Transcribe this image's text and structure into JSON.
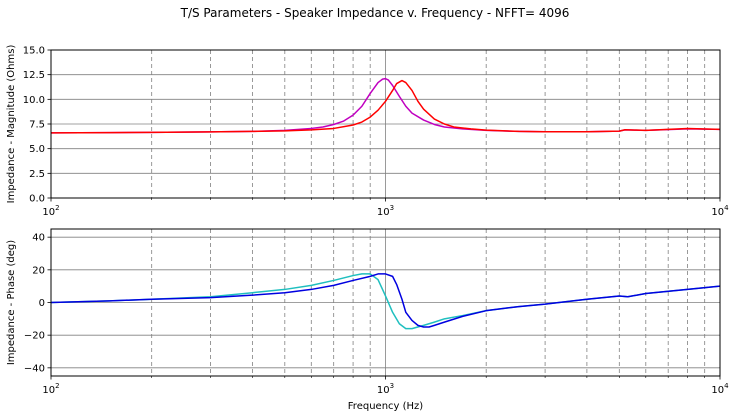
{
  "title": "T/S Parameters - Speaker Impedance v. Frequency - NFFT= 4096",
  "colors": {
    "frame": "#000000",
    "grid": "#808080",
    "mag_series_1": "#c000c0",
    "mag_series_2": "#ff0000",
    "phase_series_1": "#1fbfbf",
    "phase_series_2": "#0000e0"
  },
  "chart_data": [
    {
      "type": "line",
      "ylabel": "Impedance - Magnitude (Ohms)",
      "xlabel": "",
      "xscale": "log",
      "xlim": [
        100,
        10000
      ],
      "ylim": [
        0,
        15
      ],
      "yticks": [
        0.0,
        2.5,
        5.0,
        7.5,
        10.0,
        12.5,
        15.0
      ],
      "ytick_labels": [
        "0.0",
        "2.5",
        "5.0",
        "7.5",
        "10.0",
        "12.5",
        "15.0"
      ],
      "xtick_labels": [
        {
          "base": "10",
          "exp": "2",
          "value": 100
        },
        {
          "base": "10",
          "exp": "3",
          "value": 1000
        },
        {
          "base": "10",
          "exp": "4",
          "value": 10000
        }
      ],
      "grid": true,
      "series": [
        {
          "color_key": "mag_series_1",
          "x": [
            100,
            150,
            200,
            300,
            400,
            500,
            600,
            650,
            700,
            750,
            800,
            850,
            900,
            950,
            980,
            1000,
            1020,
            1050,
            1100,
            1150,
            1200,
            1300,
            1400,
            1500,
            1700,
            2000,
            2500,
            3000,
            4000,
            5000,
            5200,
            6000,
            8000,
            10000
          ],
          "values": [
            6.6,
            6.62,
            6.65,
            6.7,
            6.75,
            6.85,
            7.05,
            7.2,
            7.45,
            7.8,
            8.4,
            9.3,
            10.6,
            11.7,
            12.05,
            12.1,
            11.95,
            11.4,
            10.3,
            9.3,
            8.6,
            7.9,
            7.45,
            7.2,
            7.0,
            6.85,
            6.75,
            6.72,
            6.72,
            6.78,
            6.9,
            6.85,
            7.0,
            6.95
          ]
        },
        {
          "color_key": "mag_series_2",
          "x": [
            100,
            150,
            200,
            300,
            400,
            500,
            600,
            700,
            800,
            850,
            900,
            950,
            1000,
            1050,
            1080,
            1120,
            1150,
            1200,
            1250,
            1300,
            1400,
            1500,
            1600,
            1800,
            2000,
            2500,
            3000,
            4000,
            5000,
            5200,
            6000,
            8000,
            10000
          ],
          "values": [
            6.6,
            6.62,
            6.65,
            6.7,
            6.75,
            6.8,
            6.9,
            7.05,
            7.4,
            7.7,
            8.2,
            8.9,
            9.8,
            10.9,
            11.6,
            11.9,
            11.7,
            10.9,
            9.8,
            9.0,
            8.0,
            7.5,
            7.2,
            7.0,
            6.88,
            6.75,
            6.72,
            6.72,
            6.78,
            6.92,
            6.85,
            7.05,
            6.95
          ]
        }
      ]
    },
    {
      "type": "line",
      "ylabel": "Impedance - Phase (deg)",
      "xlabel": "Frequency (Hz)",
      "xscale": "log",
      "xlim": [
        100,
        10000
      ],
      "ylim": [
        -45,
        45
      ],
      "yticks": [
        -40,
        -20,
        0,
        20,
        40
      ],
      "ytick_labels": [
        "−40",
        "−20",
        "0",
        "20",
        "40"
      ],
      "xtick_labels": [
        {
          "base": "10",
          "exp": "2",
          "value": 100
        },
        {
          "base": "10",
          "exp": "3",
          "value": 1000
        },
        {
          "base": "10",
          "exp": "4",
          "value": 10000
        }
      ],
      "grid": true,
      "series": [
        {
          "color_key": "phase_series_1",
          "x": [
            100,
            150,
            200,
            300,
            400,
            500,
            600,
            700,
            800,
            850,
            900,
            950,
            1000,
            1050,
            1100,
            1150,
            1200,
            1300,
            1400,
            1500,
            1700,
            2000,
            2500,
            3000,
            4000,
            5000,
            5300,
            6000,
            8000,
            10000
          ],
          "values": [
            0,
            1,
            2,
            3.5,
            6,
            8,
            10.5,
            13.5,
            16.5,
            17.5,
            17.5,
            14,
            4,
            -6,
            -13,
            -16,
            -16,
            -14,
            -12,
            -10,
            -8,
            -5,
            -2.5,
            -1,
            2,
            4,
            3.5,
            5.5,
            8,
            10
          ]
        },
        {
          "color_key": "phase_series_2",
          "x": [
            100,
            150,
            200,
            300,
            400,
            500,
            600,
            700,
            800,
            900,
            950,
            1000,
            1050,
            1080,
            1120,
            1150,
            1200,
            1250,
            1300,
            1350,
            1400,
            1500,
            1700,
            2000,
            2500,
            3000,
            4000,
            5000,
            5300,
            6000,
            8000,
            10000
          ],
          "values": [
            0,
            1,
            2,
            3,
            4.5,
            6,
            8,
            10.5,
            13.5,
            16,
            17.5,
            17.5,
            16,
            11,
            2,
            -6,
            -11,
            -14,
            -15,
            -15,
            -14,
            -12,
            -8.5,
            -5,
            -2.5,
            -1,
            2,
            4,
            3.5,
            5.5,
            8,
            10
          ]
        }
      ]
    }
  ]
}
